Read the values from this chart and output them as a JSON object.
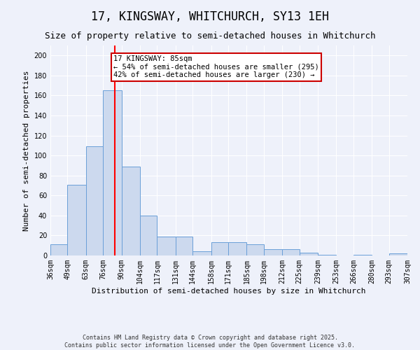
{
  "title": "17, KINGSWAY, WHITCHURCH, SY13 1EH",
  "subtitle": "Size of property relative to semi-detached houses in Whitchurch",
  "xlabel": "Distribution of semi-detached houses by size in Whitchurch",
  "ylabel": "Number of semi-detached properties",
  "bar_values": [
    11,
    71,
    109,
    165,
    89,
    40,
    19,
    19,
    4,
    13,
    13,
    11,
    6,
    6,
    3,
    1,
    0,
    1,
    0,
    2
  ],
  "bin_edges": [
    36,
    49,
    63,
    76,
    90,
    104,
    117,
    131,
    144,
    158,
    171,
    185,
    198,
    212,
    225,
    239,
    253,
    266,
    280,
    293,
    307
  ],
  "bar_color": "#ccd9ee",
  "bar_edge_color": "#6a9fd8",
  "red_line_x": 85,
  "annotation_text": "17 KINGSWAY: 85sqm\n← 54% of semi-detached houses are smaller (295)\n42% of semi-detached houses are larger (230) →",
  "annotation_box_color": "#ffffff",
  "annotation_box_edge": "#cc0000",
  "footer_line1": "Contains HM Land Registry data © Crown copyright and database right 2025.",
  "footer_line2": "Contains public sector information licensed under the Open Government Licence v3.0.",
  "background_color": "#eef1fa",
  "ylim": [
    0,
    210
  ],
  "yticks": [
    0,
    20,
    40,
    60,
    80,
    100,
    120,
    140,
    160,
    180,
    200
  ],
  "title_fontsize": 12,
  "subtitle_fontsize": 9,
  "xlabel_fontsize": 8,
  "ylabel_fontsize": 8,
  "tick_fontsize": 7,
  "footer_fontsize": 6,
  "annot_fontsize": 7.5
}
